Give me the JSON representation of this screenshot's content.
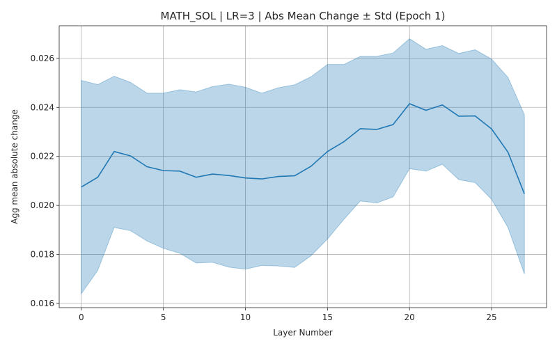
{
  "chart_data": {
    "type": "line",
    "title": "MATH_SOL | LR=3 | Abs Mean Change ± Std (Epoch 1)",
    "xlabel": "Layer Number",
    "ylabel": "Agg mean absolute change",
    "xlim": [
      -1.35,
      28.35
    ],
    "ylim": [
      0.01583,
      0.02733
    ],
    "xticks": [
      0,
      5,
      10,
      15,
      20,
      25
    ],
    "yticks": [
      0.016,
      0.018,
      0.02,
      0.022,
      0.024,
      0.026
    ],
    "xtick_labels": [
      "0",
      "5",
      "10",
      "15",
      "20",
      "25"
    ],
    "ytick_labels": [
      "0.016",
      "0.018",
      "0.020",
      "0.022",
      "0.024",
      "0.026"
    ],
    "grid": true,
    "series": [
      {
        "x": [
          0,
          1,
          2,
          3,
          4,
          5,
          6,
          7,
          8,
          9,
          10,
          11,
          12,
          13,
          14,
          15,
          16,
          17,
          18,
          19,
          20,
          21,
          22,
          23,
          24,
          25,
          26,
          27
        ],
        "mean": [
          0.02075,
          0.02115,
          0.0222,
          0.02202,
          0.02158,
          0.02142,
          0.0214,
          0.02115,
          0.02128,
          0.02122,
          0.02112,
          0.02108,
          0.02118,
          0.02121,
          0.0216,
          0.0222,
          0.0226,
          0.02313,
          0.0231,
          0.0233,
          0.02415,
          0.02388,
          0.0241,
          0.02364,
          0.02365,
          0.02312,
          0.02217,
          0.02047
        ],
        "upper": [
          0.0251,
          0.02493,
          0.02527,
          0.02502,
          0.02458,
          0.02458,
          0.02472,
          0.02463,
          0.02485,
          0.02495,
          0.02482,
          0.02458,
          0.0248,
          0.02492,
          0.02525,
          0.02575,
          0.02575,
          0.02608,
          0.02608,
          0.02622,
          0.0268,
          0.02637,
          0.02652,
          0.0262,
          0.02635,
          0.02597,
          0.02522,
          0.0237
        ],
        "lower": [
          0.0164,
          0.01735,
          0.0191,
          0.01897,
          0.01855,
          0.01825,
          0.01805,
          0.01765,
          0.01768,
          0.01748,
          0.0174,
          0.01755,
          0.01753,
          0.01747,
          0.01795,
          0.01863,
          0.01943,
          0.02018,
          0.0201,
          0.02035,
          0.0215,
          0.0214,
          0.02168,
          0.02105,
          0.02093,
          0.02025,
          0.0191,
          0.0172
        ],
        "line_color": "#1f77b4",
        "band_color": "#1f77b4",
        "band_alpha": 0.3
      }
    ]
  }
}
